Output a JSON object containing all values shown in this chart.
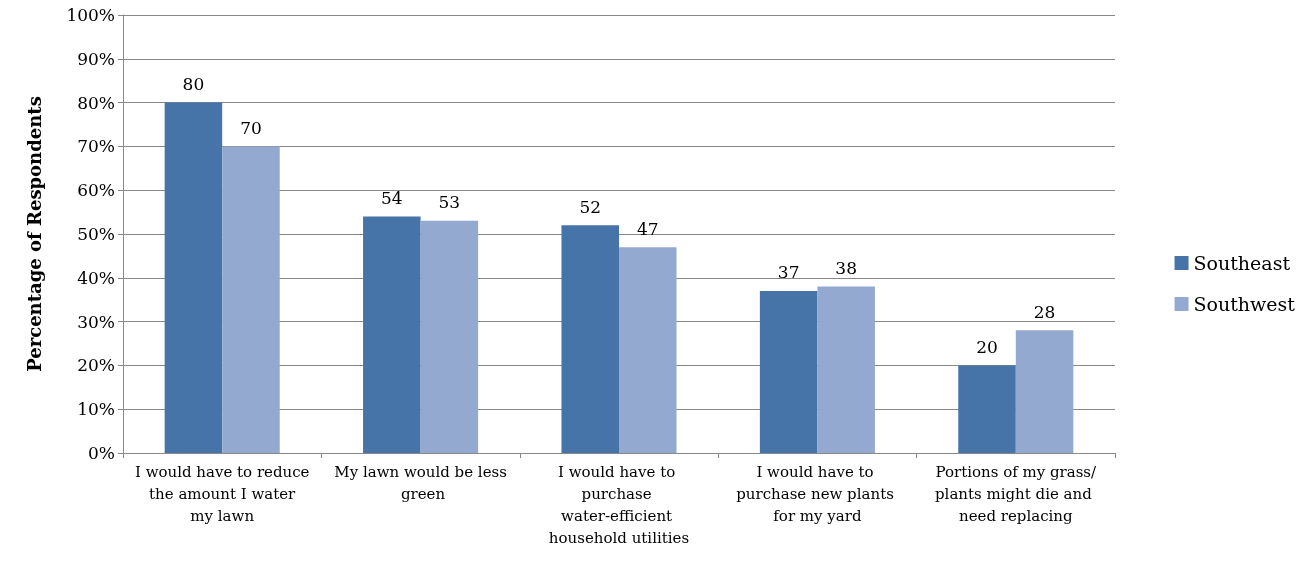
{
  "chart_data": {
    "type": "bar",
    "ylabel": "Percentage of Respondents",
    "categories": [
      "I would have to reduce the amount I water my lawn",
      "My lawn would be less green",
      "I would have to purchase water-efficient household utilities",
      "I would have to purchase new plants for my yard",
      "Portions of my grass/plants might die and need replacing"
    ],
    "series": [
      {
        "name": "Southeast",
        "color": "#4673a8",
        "values": [
          80,
          54,
          52,
          37,
          20
        ]
      },
      {
        "name": "Southwest",
        "color": "#93a9d0",
        "values": [
          70,
          53,
          47,
          38,
          28
        ]
      }
    ],
    "ylim": [
      0,
      100
    ],
    "yticks": [
      {
        "value": 0,
        "label": "0%"
      },
      {
        "value": 10,
        "label": "10%"
      },
      {
        "value": 20,
        "label": "20%"
      },
      {
        "value": 30,
        "label": "30%"
      },
      {
        "value": 40,
        "label": "40%"
      },
      {
        "value": 50,
        "label": "50%"
      },
      {
        "value": 60,
        "label": "60%"
      },
      {
        "value": 70,
        "label": "70%"
      },
      {
        "value": 80,
        "label": "80%"
      },
      {
        "value": 90,
        "label": "90%"
      },
      {
        "value": 100,
        "label": "100%"
      }
    ],
    "grid": true,
    "legend": "right",
    "data_labels": true
  }
}
